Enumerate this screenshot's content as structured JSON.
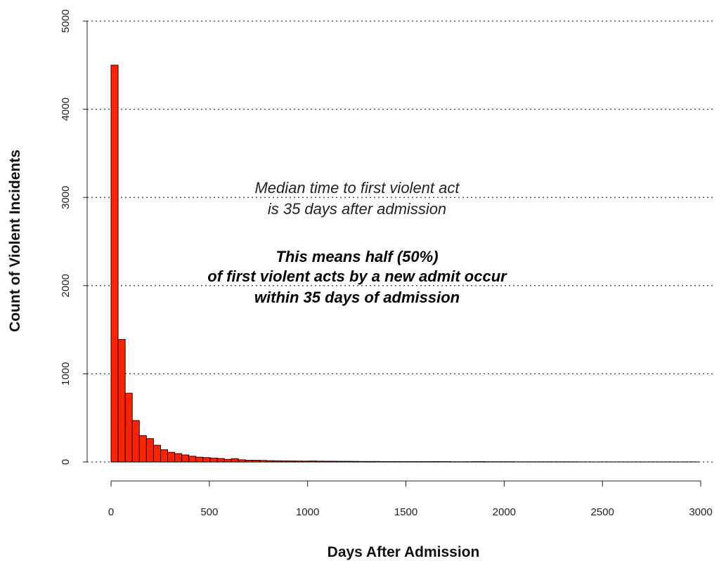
{
  "chart_data": {
    "type": "bar",
    "subtype": "histogram",
    "xlabel": "Days After Admission",
    "ylabel": "Count of Violent Incidents",
    "xlim": [
      0,
      3000
    ],
    "ylim": [
      0,
      5000
    ],
    "xticks": [
      "0",
      "500",
      "1000",
      "1500",
      "2000",
      "2500",
      "3000"
    ],
    "yticks": [
      "0",
      "1000",
      "2000",
      "3000",
      "4000",
      "5000"
    ],
    "grid": "horizontal dotted",
    "bin_width": 36,
    "bar_color": "#ff2200",
    "bin_start": [
      0,
      36,
      72,
      108,
      144,
      180,
      216,
      252,
      288,
      324,
      360,
      396,
      432,
      468,
      504,
      540,
      576,
      612,
      648,
      684,
      720,
      756,
      792,
      828,
      864,
      900,
      936,
      972,
      1008,
      1044,
      1080,
      1116,
      1152,
      1188,
      1224,
      1260,
      1296,
      1332,
      1368,
      1404,
      1440,
      1476,
      1512,
      1548,
      1584,
      1620,
      1656,
      1692,
      1728,
      1764,
      1800,
      1836,
      1872,
      1908,
      1944,
      1980,
      2016,
      2052,
      2088,
      2124,
      2160,
      2196,
      2232,
      2268,
      2304,
      2340,
      2376,
      2412,
      2448,
      2484,
      2520,
      2556,
      2592,
      2628,
      2664,
      2700,
      2736,
      2772,
      2808,
      2844,
      2880,
      2916,
      2952
    ],
    "values": [
      4500,
      1390,
      780,
      470,
      300,
      265,
      190,
      140,
      110,
      95,
      80,
      65,
      55,
      50,
      45,
      40,
      30,
      38,
      25,
      20,
      20,
      18,
      15,
      14,
      13,
      12,
      11,
      10,
      12,
      10,
      9,
      9,
      8,
      8,
      7,
      6,
      6,
      6,
      5,
      5,
      5,
      4,
      4,
      4,
      4,
      5,
      5,
      4,
      3,
      3,
      3,
      4,
      4,
      3,
      3,
      3,
      3,
      2,
      2,
      2,
      2,
      2,
      2,
      2,
      2,
      2,
      1,
      1,
      1,
      1,
      1,
      1,
      1,
      1,
      1,
      1,
      1,
      1,
      1,
      1,
      1,
      1,
      1
    ],
    "annotations": {
      "median_line1": "Median time to first violent act",
      "median_line2": "is 35 days after admission",
      "half_line1": "This means half (50%)",
      "half_line2": "of first violent acts by a new admit occur",
      "half_line3": "within 35 days of admission"
    }
  }
}
